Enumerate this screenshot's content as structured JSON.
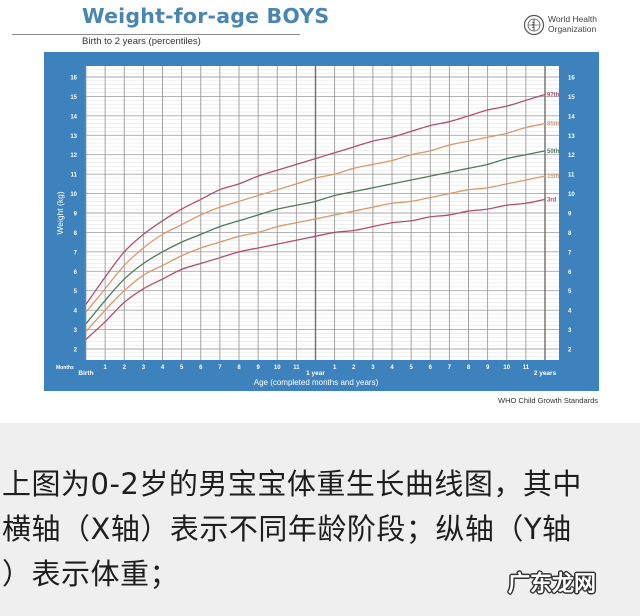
{
  "header": {
    "title": "Weight-for-age BOYS",
    "subtitle": "Birth to 2 years (percentiles)",
    "org_line1": "World Health",
    "org_line2": "Organization",
    "org_icon": "who-emblem-icon"
  },
  "footer": {
    "source": "WHO Child Growth Standards"
  },
  "caption": {
    "line1": "上图为0-2岁的男宝宝体重生长曲线图，其中",
    "line2": "横轴（X轴）表示不同年龄阶段；纵轴（Y轴",
    "line3": "）表示体重；"
  },
  "watermark": "广东龙网",
  "colors": {
    "panel_blue": "#3e82bd",
    "title_blue": "#4a86b0",
    "p97": "#b0506e",
    "p85": "#d99a6c",
    "p50": "#4f7a5c",
    "p15": "#d99a6c",
    "p3": "#b0506e"
  },
  "chart_data": {
    "type": "line",
    "title": "Weight-for-age BOYS",
    "subtitle": "Birth to 2 years (percentiles)",
    "xlabel": "Age (completed months and years)",
    "ylabel": "Weight (kg)",
    "x_unit": "months",
    "xlim": [
      0,
      24
    ],
    "ylim": [
      2,
      16
    ],
    "grid": true,
    "legend_position": "right-end labels",
    "x_tick_labels": [
      "Birth",
      "1",
      "2",
      "3",
      "4",
      "5",
      "6",
      "7",
      "8",
      "9",
      "10",
      "11",
      "1 year",
      "1",
      "2",
      "3",
      "4",
      "5",
      "6",
      "7",
      "8",
      "9",
      "10",
      "11",
      "2 years"
    ],
    "x_axis_prefix_label": "Months",
    "y_ticks": [
      2,
      3,
      4,
      5,
      6,
      7,
      8,
      9,
      10,
      11,
      12,
      13,
      14,
      15,
      16
    ],
    "x": [
      0,
      1,
      2,
      3,
      4,
      5,
      6,
      7,
      8,
      9,
      10,
      11,
      12,
      13,
      14,
      15,
      16,
      17,
      18,
      19,
      20,
      21,
      22,
      23,
      24
    ],
    "series": [
      {
        "name": "97th",
        "values": [
          4.3,
          5.7,
          7.0,
          7.9,
          8.6,
          9.2,
          9.7,
          10.2,
          10.5,
          10.9,
          11.2,
          11.5,
          11.8,
          12.1,
          12.4,
          12.7,
          12.9,
          13.2,
          13.5,
          13.7,
          14.0,
          14.3,
          14.5,
          14.8,
          15.1
        ]
      },
      {
        "name": "85th",
        "values": [
          3.9,
          5.1,
          6.3,
          7.2,
          7.9,
          8.4,
          8.9,
          9.3,
          9.6,
          9.9,
          10.2,
          10.5,
          10.8,
          11.0,
          11.3,
          11.5,
          11.7,
          12.0,
          12.2,
          12.5,
          12.7,
          12.9,
          13.1,
          13.4,
          13.6
        ]
      },
      {
        "name": "50th",
        "values": [
          3.3,
          4.5,
          5.6,
          6.4,
          7.0,
          7.5,
          7.9,
          8.3,
          8.6,
          8.9,
          9.2,
          9.4,
          9.6,
          9.9,
          10.1,
          10.3,
          10.5,
          10.7,
          10.9,
          11.1,
          11.3,
          11.5,
          11.8,
          12.0,
          12.2
        ]
      },
      {
        "name": "15th",
        "values": [
          2.9,
          4.0,
          5.0,
          5.8,
          6.3,
          6.8,
          7.2,
          7.5,
          7.8,
          8.0,
          8.3,
          8.5,
          8.7,
          8.9,
          9.1,
          9.3,
          9.5,
          9.6,
          9.8,
          10.0,
          10.2,
          10.3,
          10.5,
          10.7,
          10.9
        ]
      },
      {
        "name": "3rd",
        "values": [
          2.5,
          3.4,
          4.4,
          5.1,
          5.6,
          6.1,
          6.4,
          6.7,
          7.0,
          7.2,
          7.4,
          7.6,
          7.8,
          8.0,
          8.1,
          8.3,
          8.5,
          8.6,
          8.8,
          8.9,
          9.1,
          9.2,
          9.4,
          9.5,
          9.7
        ]
      }
    ]
  }
}
